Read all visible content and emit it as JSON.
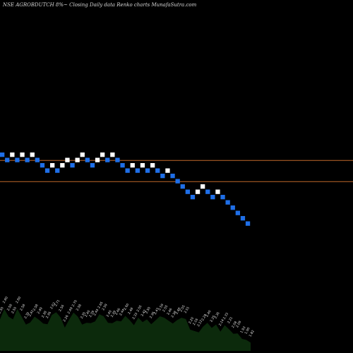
{
  "header": {
    "title": "NSE AGROBDUTCH 8%~  Closing Daily data  Renko  charts MunafaSutra.com"
  },
  "colors": {
    "background": "#000000",
    "up_brick": "#ffffff",
    "down_brick": "#1f6fe8",
    "reference_line": "#c0682a",
    "volume_fill": "#0c2a0c"
  },
  "chart_data": {
    "type": "renko",
    "title": "NSE AGROBDUTCH 8%~  Closing Daily data  Renko  charts MunafaSutra.com",
    "bricks": [
      {
        "dir": "down",
        "level": 0
      },
      {
        "dir": "down",
        "level": 1
      },
      {
        "dir": "up",
        "level": 0
      },
      {
        "dir": "down",
        "level": 1
      },
      {
        "dir": "up",
        "level": 0
      },
      {
        "dir": "down",
        "level": 1
      },
      {
        "dir": "up",
        "level": 0
      },
      {
        "dir": "down",
        "level": 1
      },
      {
        "dir": "down",
        "level": 2
      },
      {
        "dir": "down",
        "level": 3
      },
      {
        "dir": "up",
        "level": 2
      },
      {
        "dir": "down",
        "level": 3
      },
      {
        "dir": "up",
        "level": 2
      },
      {
        "dir": "up",
        "level": 1
      },
      {
        "dir": "down",
        "level": 2
      },
      {
        "dir": "up",
        "level": 1
      },
      {
        "dir": "up",
        "level": 0
      },
      {
        "dir": "down",
        "level": 1
      },
      {
        "dir": "down",
        "level": 2
      },
      {
        "dir": "up",
        "level": 1
      },
      {
        "dir": "up",
        "level": 0
      },
      {
        "dir": "down",
        "level": 1
      },
      {
        "dir": "up",
        "level": 0
      },
      {
        "dir": "down",
        "level": 1
      },
      {
        "dir": "down",
        "level": 2
      },
      {
        "dir": "down",
        "level": 3
      },
      {
        "dir": "up",
        "level": 2
      },
      {
        "dir": "down",
        "level": 3
      },
      {
        "dir": "up",
        "level": 2
      },
      {
        "dir": "down",
        "level": 3
      },
      {
        "dir": "up",
        "level": 2
      },
      {
        "dir": "down",
        "level": 3
      },
      {
        "dir": "down",
        "level": 4
      },
      {
        "dir": "up",
        "level": 3
      },
      {
        "dir": "down",
        "level": 4
      },
      {
        "dir": "down",
        "level": 5
      },
      {
        "dir": "down",
        "level": 6
      },
      {
        "dir": "down",
        "level": 7
      },
      {
        "dir": "down",
        "level": 8
      },
      {
        "dir": "up",
        "level": 7
      },
      {
        "dir": "up",
        "level": 6
      },
      {
        "dir": "down",
        "level": 7
      },
      {
        "dir": "down",
        "level": 8
      },
      {
        "dir": "up",
        "level": 7
      },
      {
        "dir": "down",
        "level": 8
      },
      {
        "dir": "down",
        "level": 9
      },
      {
        "dir": "down",
        "level": 10
      },
      {
        "dir": "down",
        "level": 11
      },
      {
        "dir": "down",
        "level": 12
      },
      {
        "dir": "down",
        "level": 13
      }
    ],
    "reference_lines": [
      1.5,
      5.5
    ],
    "volume": {
      "label_values": [
        "2.50",
        "2.80",
        "2.58",
        "2.50",
        "2.80",
        "2.58",
        "2.35",
        "2.41",
        "2.58",
        "2.49",
        "2.38",
        "2.36",
        "2.63",
        "2.71",
        "2.56",
        "2.26",
        "2.49",
        "2.70",
        "2.58",
        "2.35",
        "2.40",
        "2.39",
        "2.44",
        "2.65",
        "2.59",
        "2.40",
        "2.39",
        "2.46",
        "2.44",
        "2.60",
        "2.48",
        "2.33",
        "2.55",
        "2.42",
        "2.50",
        "2.36",
        "2.47",
        "2.59",
        "2.55",
        "2.46",
        "2.38",
        "2.48",
        "2.55",
        "2.51",
        "2.20",
        "2.16",
        "2.12",
        "2.29",
        "2.40",
        "2.25",
        "2.35",
        "2.14",
        "2.33",
        "2.21",
        "2.08",
        "2.09",
        "1.93",
        "1.90",
        "1.82"
      ]
    }
  }
}
